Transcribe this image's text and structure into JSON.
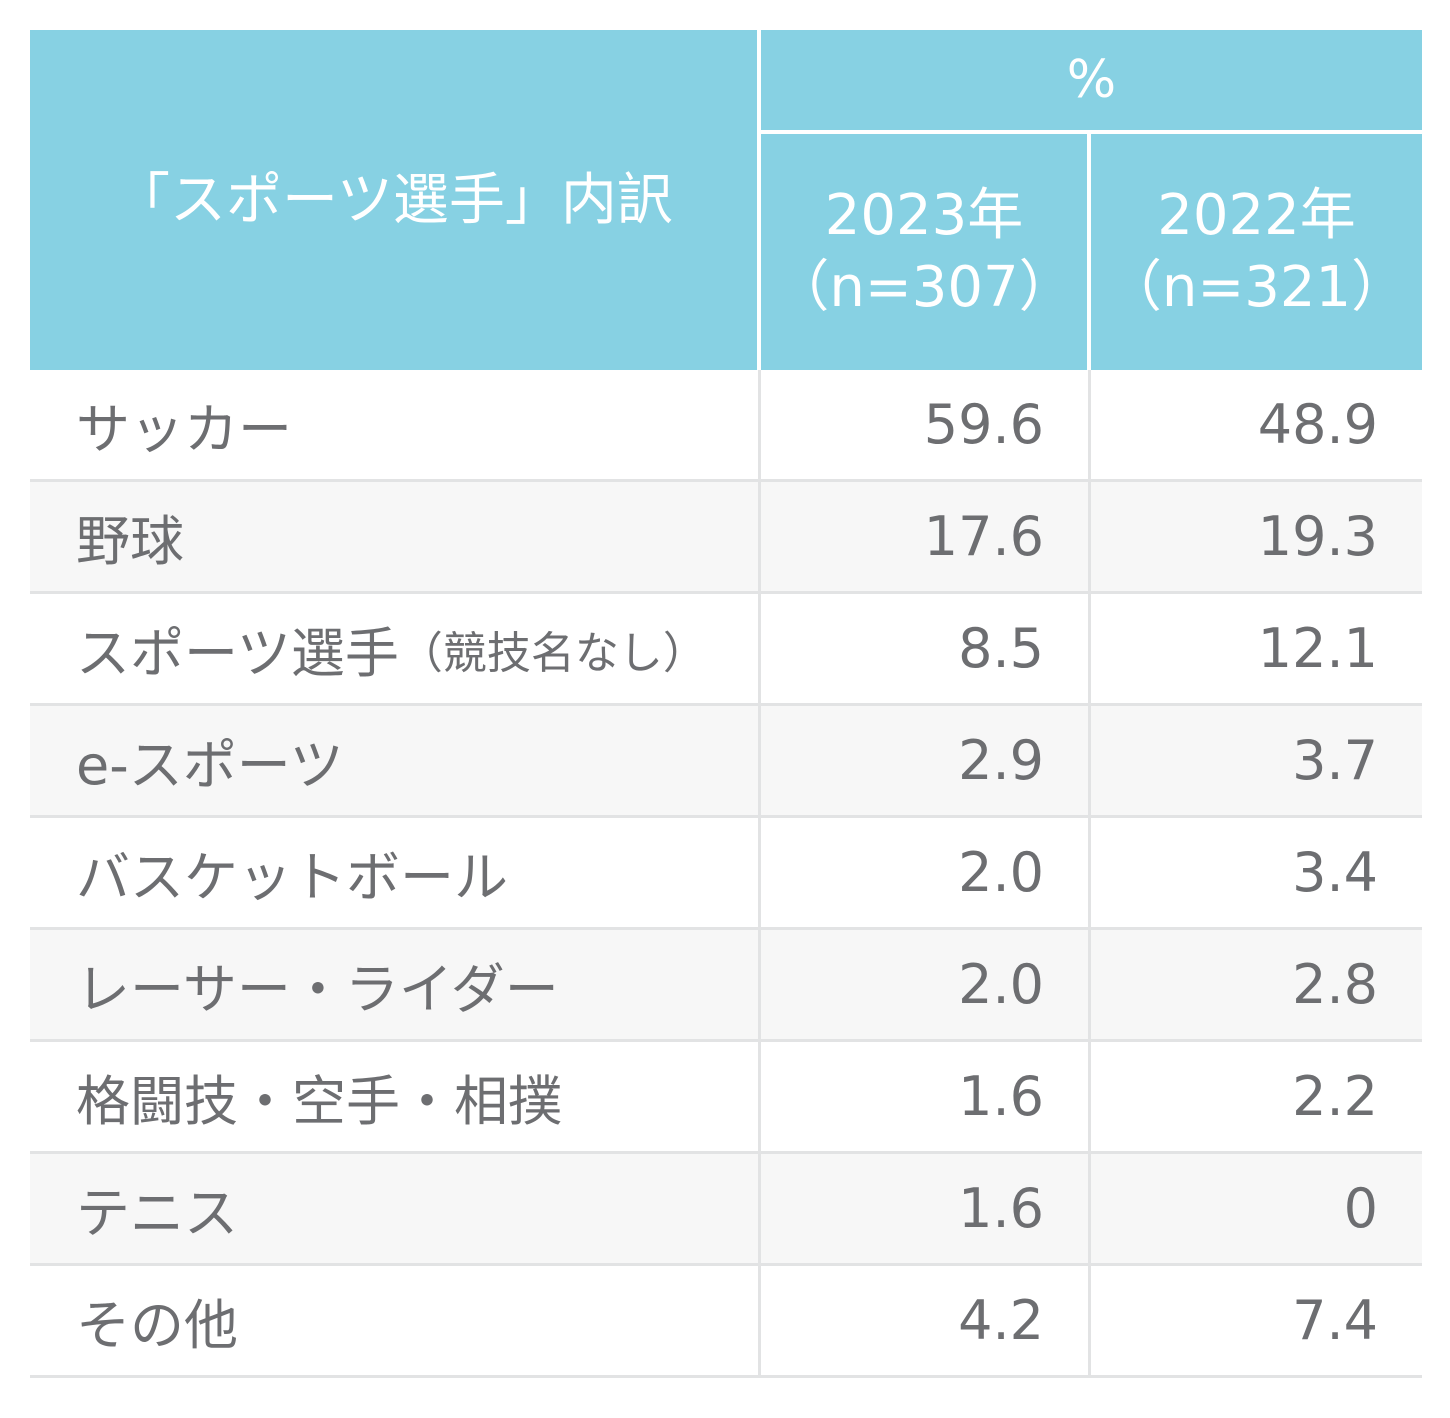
{
  "chart_data": {
    "type": "table",
    "header": {
      "label": "「スポーツ選手」内訳",
      "unit": "%",
      "columns": [
        {
          "year": "2023年",
          "n": "（n=307）"
        },
        {
          "year": "2022年",
          "n": "（n=321）"
        }
      ]
    },
    "rows": [
      {
        "label": "サッカー",
        "label_note": "",
        "v2023": "59.6",
        "v2022": "48.9"
      },
      {
        "label": "野球",
        "label_note": "",
        "v2023": "17.6",
        "v2022": "19.3"
      },
      {
        "label": "スポーツ選手",
        "label_note": "（競技名なし）",
        "v2023": "8.5",
        "v2022": "12.1"
      },
      {
        "label": "e-スポーツ",
        "label_note": "",
        "v2023": "2.9",
        "v2022": "3.7"
      },
      {
        "label": "バスケットボール",
        "label_note": "",
        "v2023": "2.0",
        "v2022": "3.4"
      },
      {
        "label": "レーサー・ライダー",
        "label_note": "",
        "v2023": "2.0",
        "v2022": "2.8"
      },
      {
        "label": "格闘技・空手・相撲",
        "label_note": "",
        "v2023": "1.6",
        "v2022": "2.2"
      },
      {
        "label": "テニス",
        "label_note": "",
        "v2023": "1.6",
        "v2022": "0"
      },
      {
        "label": "その他",
        "label_note": "",
        "v2023": "4.2",
        "v2022": "7.4"
      }
    ]
  },
  "colors": {
    "header_bg": "#87d1e3",
    "header_text": "#ffffff",
    "body_text": "#6d6e71",
    "grid_line": "#e2e3e4",
    "alt_row_bg": "#f7f7f7"
  }
}
